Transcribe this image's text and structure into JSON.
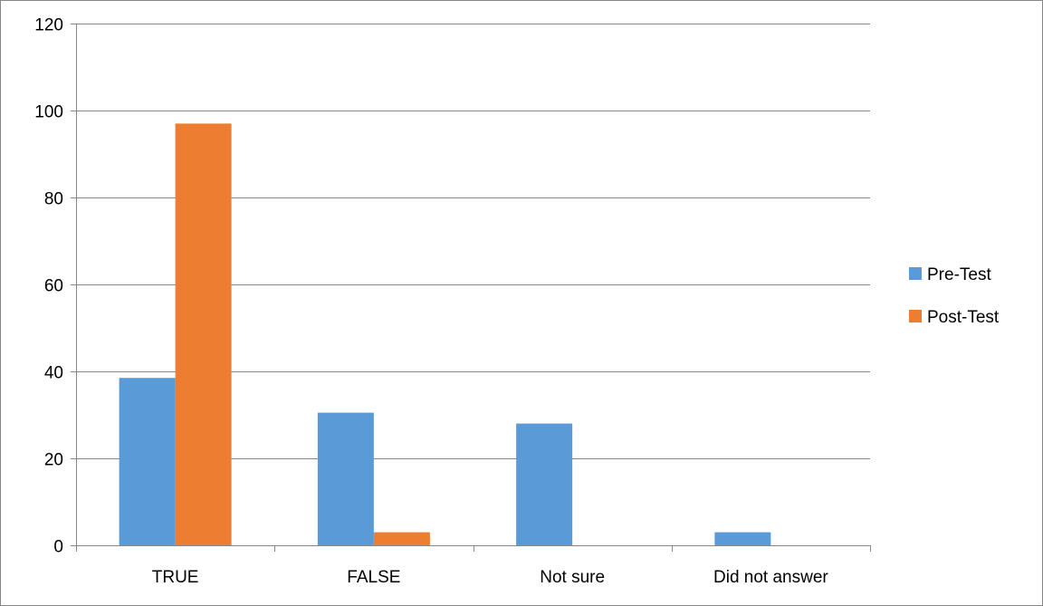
{
  "chart_data": {
    "type": "bar",
    "categories": [
      "TRUE",
      "FALSE",
      "Not sure",
      "Did not answer"
    ],
    "series": [
      {
        "name": "Pre-Test",
        "color": "#5B9BD5",
        "values": [
          38.5,
          30.5,
          28,
          3
        ]
      },
      {
        "name": "Post-Test",
        "color": "#ED7D31",
        "values": [
          97,
          3,
          0,
          0
        ]
      }
    ],
    "ylim": [
      0,
      120
    ],
    "yticks": [
      0,
      20,
      40,
      60,
      80,
      100,
      120
    ],
    "grid": true,
    "legend": "right"
  }
}
